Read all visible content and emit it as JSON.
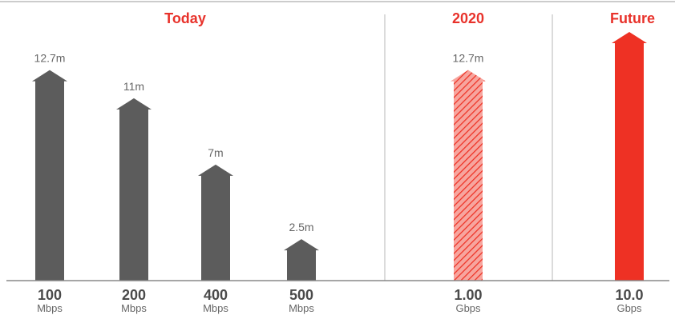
{
  "chart_data": {
    "type": "bar",
    "sections": [
      {
        "title": "Today"
      },
      {
        "title": "2020"
      },
      {
        "title": "Future"
      }
    ],
    "categories": [
      {
        "value": "100",
        "unit": "Mbps",
        "section": 0
      },
      {
        "value": "200",
        "unit": "Mbps",
        "section": 0
      },
      {
        "value": "400",
        "unit": "Mbps",
        "section": 0
      },
      {
        "value": "500",
        "unit": "Mbps",
        "section": 0
      },
      {
        "value": "1.00",
        "unit": "Gbps",
        "section": 1
      },
      {
        "value": "10.0",
        "unit": "Gbps",
        "section": 2
      }
    ],
    "values": [
      12.7,
      11,
      7,
      2.5,
      12.7,
      15
    ],
    "value_labels": [
      "12.7m",
      "11m",
      "7m",
      "2.5m",
      "12.7m",
      ""
    ],
    "styles": [
      "solid-gray",
      "solid-gray",
      "solid-gray",
      "solid-gray",
      "hatched-red",
      "solid-red"
    ],
    "ylim": [
      0,
      15
    ],
    "colors": {
      "gray": "#5c5c5c",
      "red": "#ee3124",
      "hatch_fill": "#f7a59e",
      "title": "#e8322b",
      "divider": "#cfcfcf",
      "baseline": "#888888",
      "top_rule": "#cccccc"
    }
  }
}
